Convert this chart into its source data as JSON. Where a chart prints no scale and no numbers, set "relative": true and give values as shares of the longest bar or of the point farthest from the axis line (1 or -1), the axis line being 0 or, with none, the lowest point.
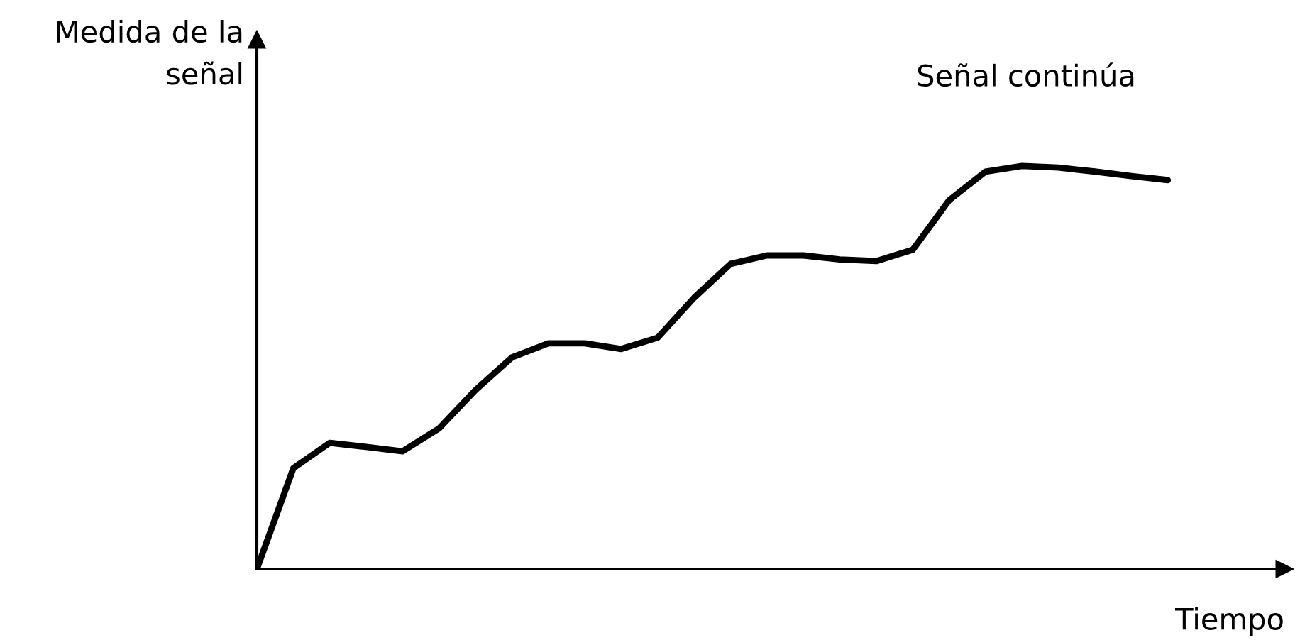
{
  "chart_data": {
    "type": "line",
    "relative": true,
    "ylabel": "Medida de la\nseñal",
    "xlabel": "Tiempo",
    "annotations": [
      "Señal continúa"
    ],
    "categories": [
      null,
      null,
      null,
      null,
      null,
      null,
      null,
      null,
      null,
      null,
      null,
      null,
      null,
      null,
      null,
      null,
      null,
      null,
      null,
      null,
      null,
      null,
      null,
      null,
      null,
      null
    ],
    "series": [
      {
        "color": "#000000",
        "values": [
          0,
          0.25,
          0.313,
          0.303,
          0.292,
          0.349,
          0.444,
          0.525,
          0.56,
          0.56,
          0.546,
          0.574,
          0.673,
          0.757,
          0.778,
          0.778,
          0.768,
          0.764,
          0.792,
          0.915,
          0.986,
          1.0,
          0.996,
          0.986,
          0.975,
          0.965
        ]
      }
    ],
    "marker": "none",
    "line_style": "solid",
    "grid": false,
    "legend": false
  }
}
